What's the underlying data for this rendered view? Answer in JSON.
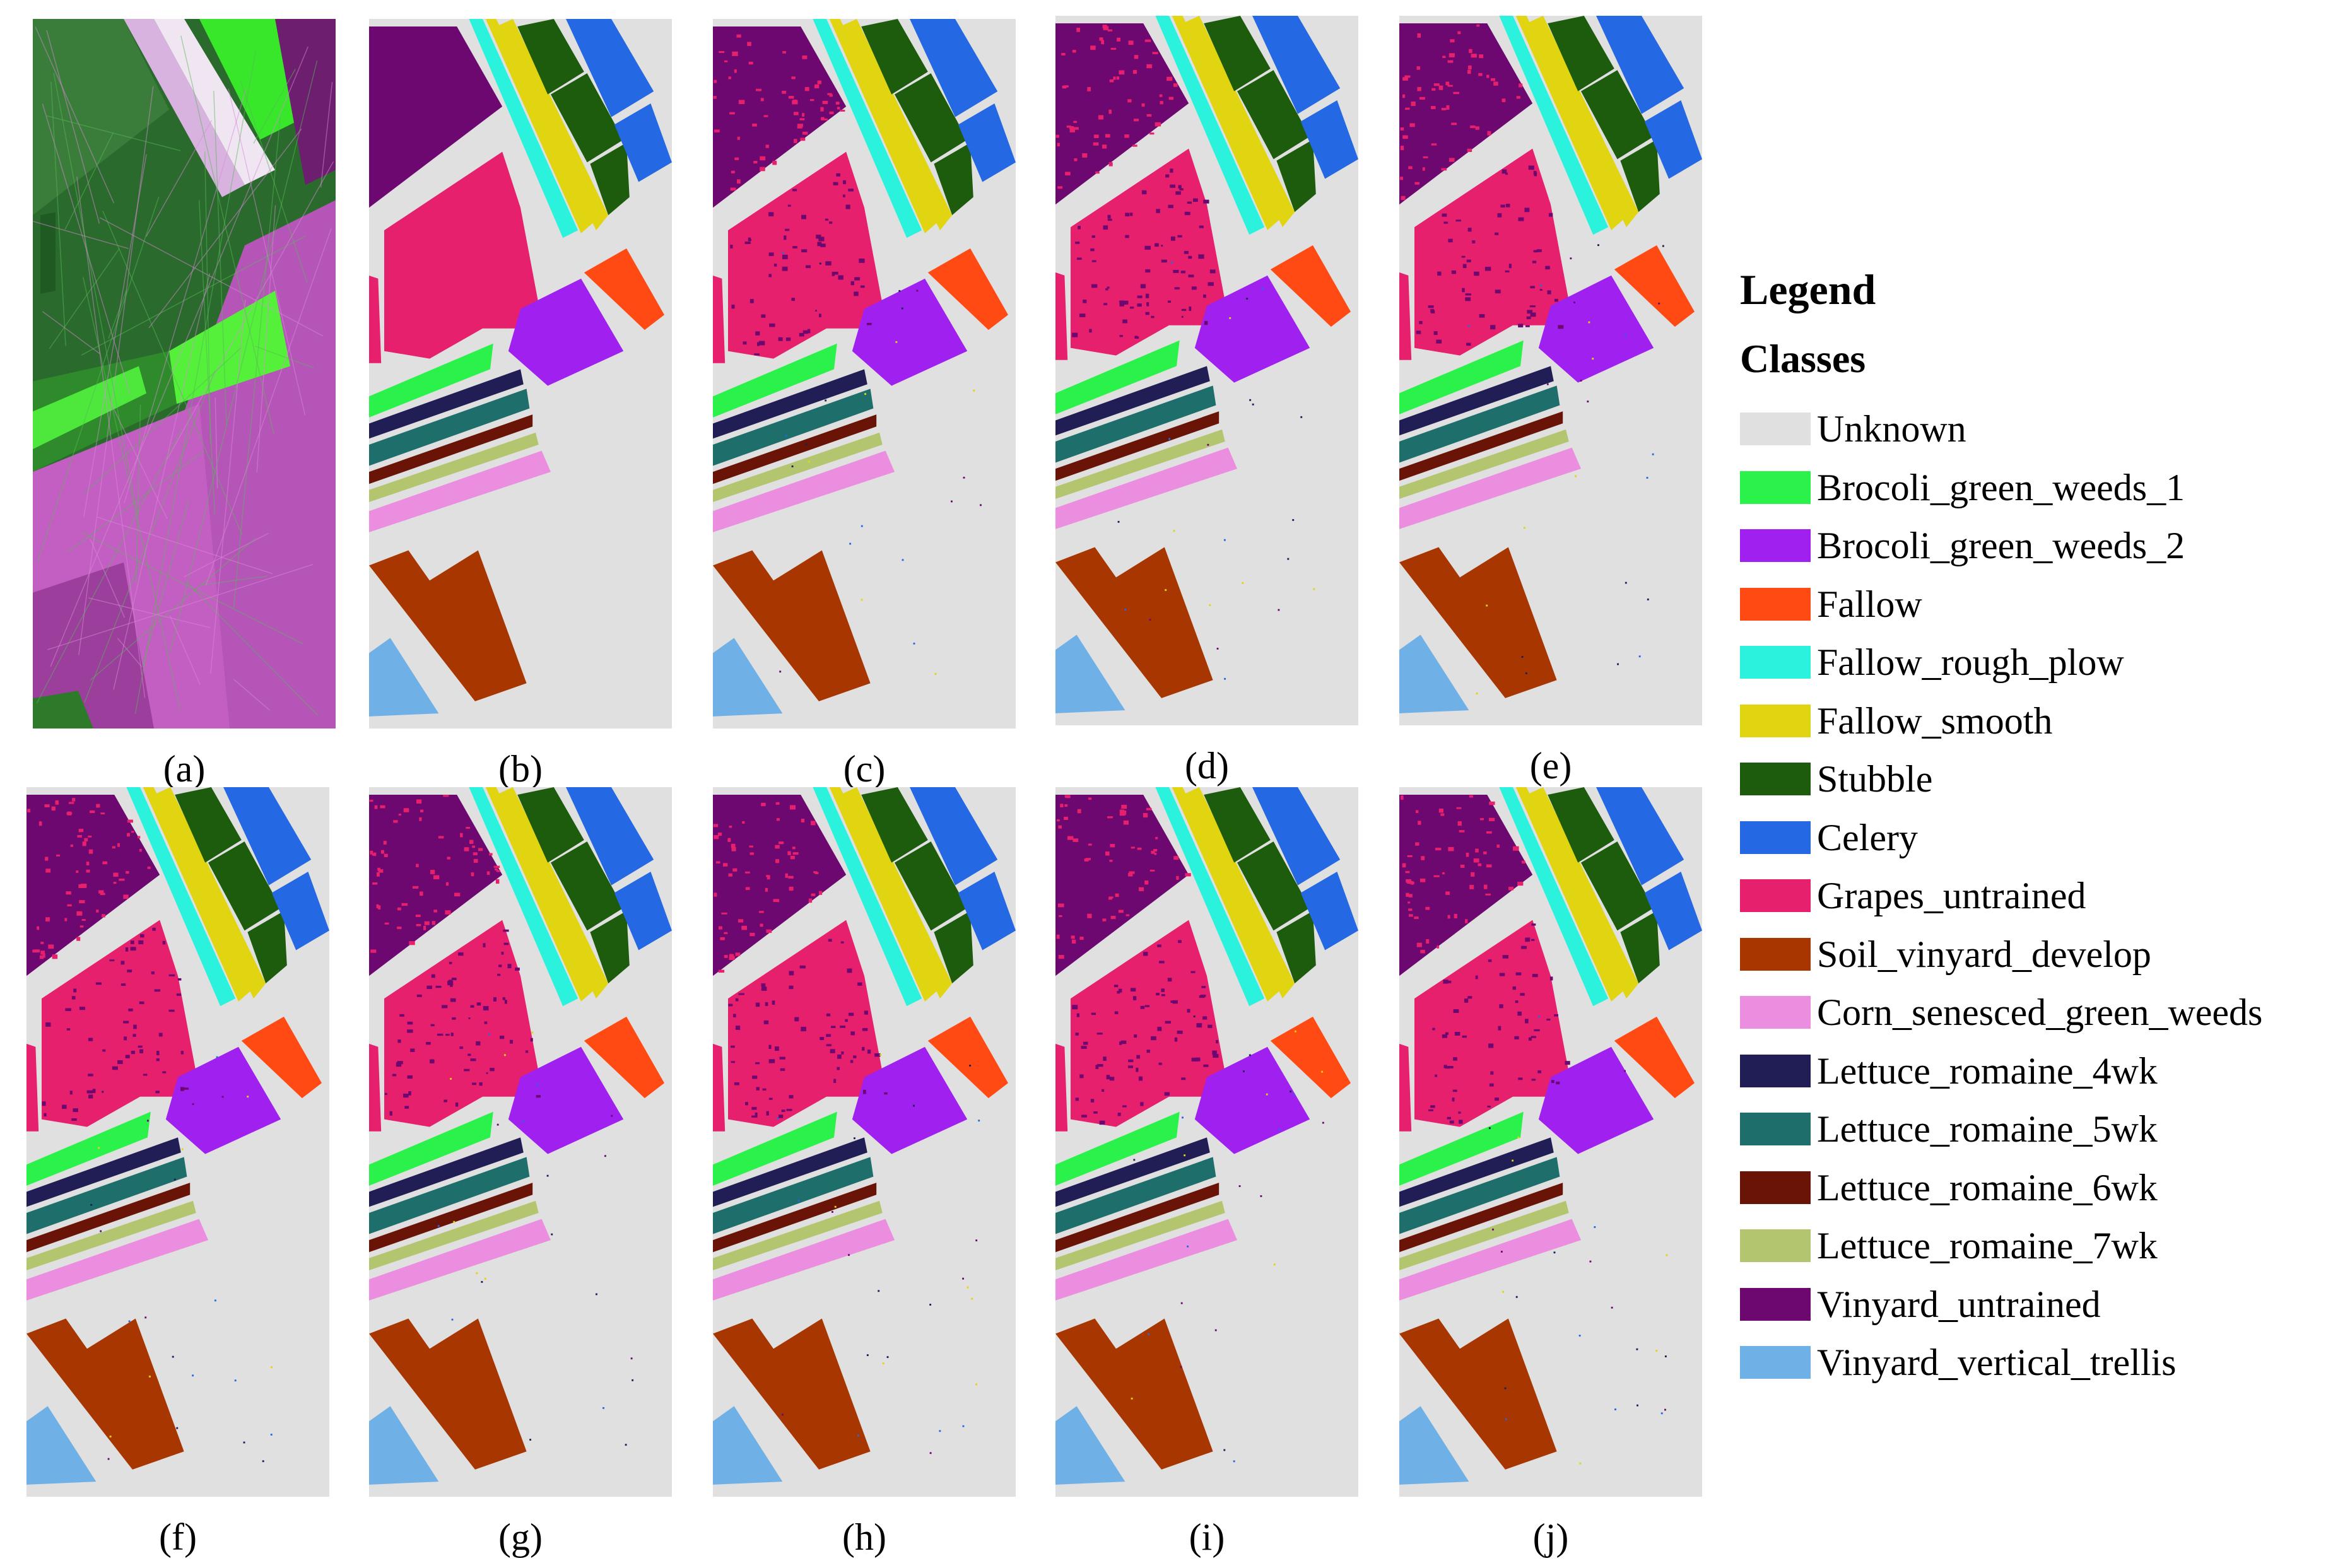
{
  "panels": [
    {
      "id": "a",
      "caption": "(a)",
      "kind": "false-color"
    },
    {
      "id": "b",
      "caption": "(b)",
      "kind": "ground-truth"
    },
    {
      "id": "c",
      "caption": "(c)",
      "kind": "classification"
    },
    {
      "id": "d",
      "caption": "(d)",
      "kind": "classification"
    },
    {
      "id": "e",
      "caption": "(e)",
      "kind": "classification"
    },
    {
      "id": "f",
      "caption": "(f)",
      "kind": "classification"
    },
    {
      "id": "g",
      "caption": "(g)",
      "kind": "classification"
    },
    {
      "id": "h",
      "caption": "(h)",
      "kind": "classification"
    },
    {
      "id": "i",
      "caption": "(i)",
      "kind": "classification"
    },
    {
      "id": "j",
      "caption": "(j)",
      "kind": "classification"
    }
  ],
  "legend": {
    "title": "Legend",
    "subtitle": "Classes",
    "classes": [
      {
        "label": "Unknown",
        "color": "#e0e0e0"
      },
      {
        "label": "Brocoli_green_weeds_1",
        "color": "#2bf24b"
      },
      {
        "label": "Brocoli_green_weeds_2",
        "color": "#a020f0"
      },
      {
        "label": "Fallow",
        "color": "#ff4a14"
      },
      {
        "label": "Fallow_rough_plow",
        "color": "#2af2dc"
      },
      {
        "label": "Fallow_smooth",
        "color": "#e1d511"
      },
      {
        "label": "Stubble",
        "color": "#1d5b0d"
      },
      {
        "label": "Celery",
        "color": "#2468e4"
      },
      {
        "label": "Grapes_untrained",
        "color": "#e6206c"
      },
      {
        "label": "Soil_vinyard_develop",
        "color": "#a83600"
      },
      {
        "label": "Corn_senesced_green_weeds",
        "color": "#ec8ee0"
      },
      {
        "label": "Lettuce_romaine_4wk",
        "color": "#211d55"
      },
      {
        "label": "Lettuce_romaine_5wk",
        "color": "#1e6e6c"
      },
      {
        "label": "Lettuce_romaine_6wk",
        "color": "#6a1408"
      },
      {
        "label": "Lettuce_romaine_7wk",
        "color": "#b3c66f"
      },
      {
        "label": "Vinyard_untrained",
        "color": "#6e0871"
      },
      {
        "label": "Vinyard_vertical_trellis",
        "color": "#6fb0e6"
      }
    ]
  }
}
